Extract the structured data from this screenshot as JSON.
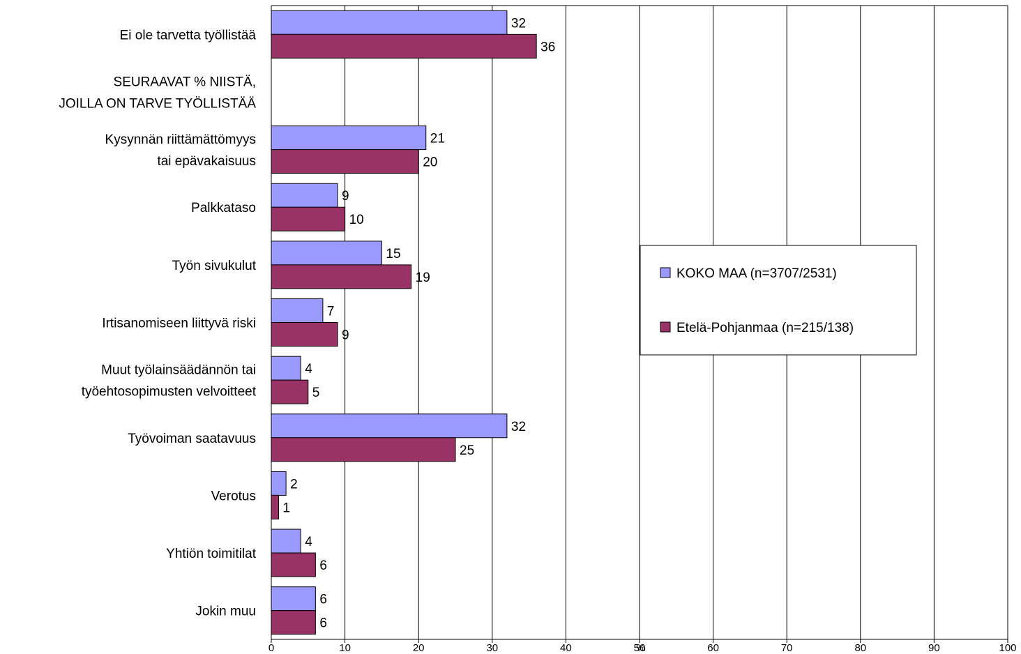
{
  "chart_data": {
    "type": "bar",
    "orientation": "horizontal",
    "categories": [
      "Ei ole tarvetta työllistää",
      "SEURAAVAT % NIISTÄ,\nJOILLA ON TARVE TYÖLLISTÄÄ",
      "Kysynnän riittämättömyys\ntai epävakaisuus",
      "Palkkataso",
      "Työn sivukulut",
      "Irtisanomiseen liittyvä riski",
      "Muut työlainsäädännön tai\ntyöehtosopimusten velvoitteet",
      "Työvoiman saatavuus",
      "Verotus",
      "Yhtiön toimitilat",
      "Jokin muu"
    ],
    "series": [
      {
        "name": "KOKO MAA (n=3707/2531)",
        "color": "#9999ff",
        "values": [
          32,
          null,
          21,
          9,
          15,
          7,
          4,
          32,
          2,
          4,
          6
        ]
      },
      {
        "name": "Etelä-Pohjanmaa (n=215/138)",
        "color": "#993366",
        "values": [
          36,
          null,
          20,
          10,
          19,
          9,
          5,
          25,
          1,
          6,
          6
        ]
      }
    ],
    "xlim": [
      0,
      100
    ],
    "xticks": [
      0,
      10,
      20,
      30,
      40,
      50,
      60,
      70,
      80,
      90,
      100
    ],
    "xlabel": "%",
    "grid": "vertical",
    "legend": "right"
  }
}
